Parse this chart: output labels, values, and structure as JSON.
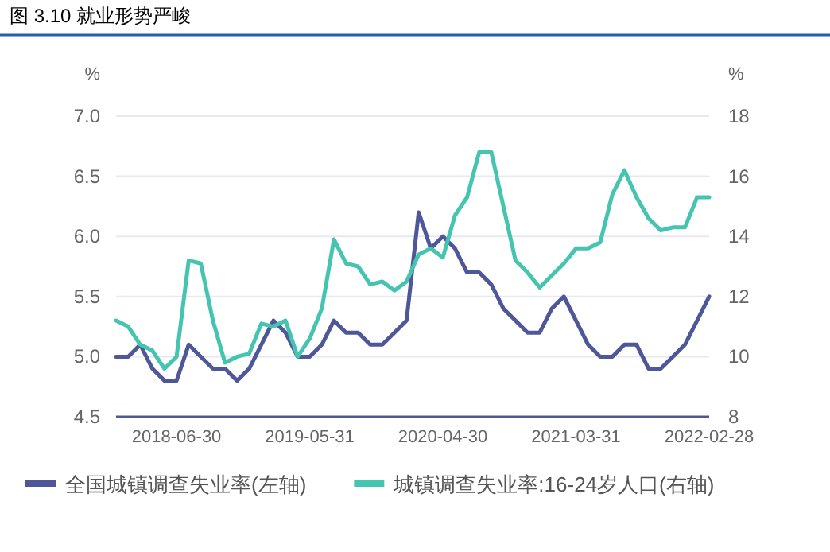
{
  "chart_data": {
    "type": "line",
    "title": "图 3.10  就业形势严峻",
    "ylabel": "%",
    "y2label": "%",
    "categories": [
      null,
      null,
      null,
      null,
      null,
      "2018-06-30",
      null,
      null,
      null,
      null,
      null,
      null,
      null,
      null,
      null,
      null,
      "2019-05-31",
      null,
      null,
      null,
      null,
      null,
      null,
      null,
      null,
      null,
      null,
      "2020-04-30",
      null,
      null,
      null,
      null,
      null,
      null,
      null,
      null,
      null,
      null,
      "2021-03-31",
      null,
      null,
      null,
      null,
      null,
      null,
      null,
      null,
      null,
      null,
      "2022-02-28"
    ],
    "series": [
      {
        "name": "全国城镇调查失业率(左轴)",
        "color": "#4e5797",
        "values": [
          5.0,
          5.0,
          5.1,
          4.9,
          4.8,
          4.8,
          5.1,
          5.0,
          4.9,
          4.9,
          4.8,
          4.9,
          5.1,
          5.3,
          5.2,
          5.0,
          5.0,
          5.1,
          5.3,
          5.2,
          5.2,
          5.1,
          5.1,
          5.2,
          5.3,
          6.2,
          5.9,
          6.0,
          5.9,
          5.7,
          5.7,
          5.6,
          5.4,
          5.3,
          5.2,
          5.2,
          5.4,
          5.5,
          5.3,
          5.1,
          5.0,
          5.0,
          5.1,
          5.1,
          4.9,
          4.9,
          5.0,
          5.1,
          5.3,
          5.5
        ]
      },
      {
        "name": "城镇调查失业率:16-24岁人口(右轴)",
        "color": "#45c4b0",
        "axis": "y2",
        "values": [
          11.2,
          11.0,
          10.4,
          10.2,
          9.6,
          10.0,
          13.2,
          13.1,
          11.2,
          9.8,
          10.0,
          10.1,
          11.1,
          11.0,
          11.2,
          10.0,
          10.6,
          11.6,
          13.9,
          13.1,
          13.0,
          12.4,
          12.5,
          12.2,
          12.5,
          13.4,
          13.6,
          13.3,
          14.7,
          15.3,
          16.8,
          16.8,
          15.0,
          13.2,
          12.8,
          12.3,
          12.7,
          13.1,
          13.6,
          13.6,
          13.8,
          15.4,
          16.2,
          15.3,
          14.6,
          14.2,
          14.3,
          14.3,
          15.3,
          15.3
        ]
      }
    ],
    "ylim": [
      4.5,
      7.0
    ],
    "yticks": [
      4.5,
      {
        "value": 5,
        "label": "5.0"
      },
      5.5,
      {
        "value": 6,
        "label": "6.0"
      },
      6.5,
      {
        "value": 7,
        "label": "7.0"
      }
    ],
    "y2lim": [
      8,
      18
    ],
    "y2ticks": [
      8,
      10,
      12,
      14,
      16,
      18
    ],
    "grid": "y",
    "legend": "bottom",
    "marker": "none",
    "line_style": "solid"
  }
}
